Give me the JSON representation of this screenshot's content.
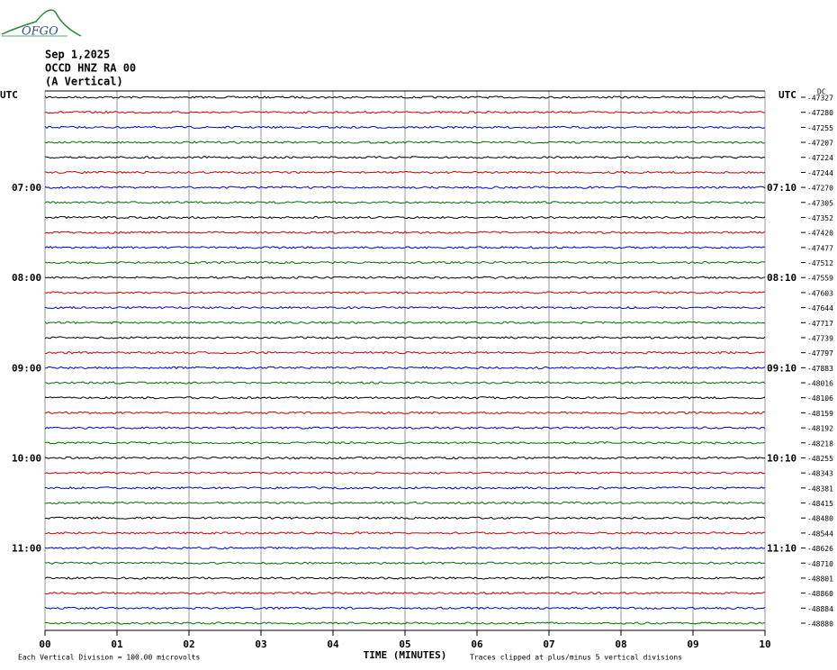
{
  "logo": "OFGO",
  "header": {
    "date": "Sep 1,2025",
    "station": "OCCD HNZ RA 00",
    "component": "(A Vertical)"
  },
  "left_axis_label": "UTC",
  "right_axis_label": "UTC",
  "dc_label": "DC",
  "trace_colors": [
    "#000000",
    "#d00000",
    "#0000d0",
    "#007000"
  ],
  "traces": [
    {
      "offset": -47327,
      "left": null,
      "right": null
    },
    {
      "offset": -47280,
      "left": null,
      "right": null
    },
    {
      "offset": -47255,
      "left": null,
      "right": null
    },
    {
      "offset": -47207,
      "left": null,
      "right": null
    },
    {
      "offset": -47224,
      "left": null,
      "right": null
    },
    {
      "offset": -47244,
      "left": null,
      "right": null
    },
    {
      "offset": -47270,
      "left": "07:00",
      "right": "07:10"
    },
    {
      "offset": -47305,
      "left": null,
      "right": null
    },
    {
      "offset": -47352,
      "left": null,
      "right": null
    },
    {
      "offset": -47420,
      "left": null,
      "right": null
    },
    {
      "offset": -47477,
      "left": null,
      "right": null
    },
    {
      "offset": -47512,
      "left": null,
      "right": null
    },
    {
      "offset": -47559,
      "left": "08:00",
      "right": "08:10"
    },
    {
      "offset": -47603,
      "left": null,
      "right": null
    },
    {
      "offset": -47644,
      "left": null,
      "right": null
    },
    {
      "offset": -47717,
      "left": null,
      "right": null
    },
    {
      "offset": -47739,
      "left": null,
      "right": null
    },
    {
      "offset": -47797,
      "left": null,
      "right": null
    },
    {
      "offset": -47883,
      "left": "09:00",
      "right": "09:10"
    },
    {
      "offset": -48016,
      "left": null,
      "right": null
    },
    {
      "offset": -48106,
      "left": null,
      "right": null
    },
    {
      "offset": -48159,
      "left": null,
      "right": null
    },
    {
      "offset": -48192,
      "left": null,
      "right": null
    },
    {
      "offset": -48218,
      "left": null,
      "right": null
    },
    {
      "offset": -48255,
      "left": "10:00",
      "right": "10:10"
    },
    {
      "offset": -48343,
      "left": null,
      "right": null
    },
    {
      "offset": -48381,
      "left": null,
      "right": null
    },
    {
      "offset": -48415,
      "left": null,
      "right": null
    },
    {
      "offset": -48480,
      "left": null,
      "right": null
    },
    {
      "offset": -48544,
      "left": null,
      "right": null
    },
    {
      "offset": -48626,
      "left": "11:00",
      "right": "11:10"
    },
    {
      "offset": -48710,
      "left": null,
      "right": null
    },
    {
      "offset": -48801,
      "left": null,
      "right": null
    },
    {
      "offset": -48860,
      "left": null,
      "right": null
    },
    {
      "offset": -48884,
      "left": null,
      "right": null
    },
    {
      "offset": -48880,
      "left": null,
      "right": null
    }
  ],
  "x_labels": [
    "00",
    "01",
    "02",
    "03",
    "04",
    "05",
    "06",
    "07",
    "08",
    "09",
    "10"
  ],
  "x_title": "TIME (MINUTES)",
  "footer": {
    "scale_note": "Each Vertical Division =  100.00 microvolts",
    "clip_note": "Traces clipped at plus/minus 5 vertical divisions"
  }
}
